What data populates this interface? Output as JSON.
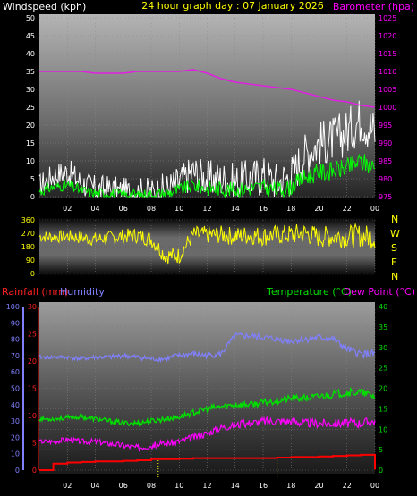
{
  "header": {
    "wind_label": "Windspeed (kph)",
    "title": "24 hour graph day : 07 January 2026",
    "baro_label": "Barometer (hpa)"
  },
  "colors": {
    "wind_gust": "#ffffff",
    "wind_avg": "#00ff00",
    "barometer": "#e020e0",
    "direction": "#ffff00",
    "rain": "#ff0000",
    "humidity": "#8080ff",
    "temperature": "#00e000",
    "dewpoint": "#ff00ff"
  },
  "bottom_labels": {
    "rain": "Rainfall (mm)",
    "humidity": "Humidity",
    "temperature": "Temperature (°C)",
    "dewpoint": "Dew Point (°C)"
  },
  "x_ticks": [
    "02",
    "04",
    "06",
    "08",
    "10",
    "12",
    "14",
    "16",
    "18",
    "20",
    "22",
    "00"
  ],
  "chart_data": [
    {
      "type": "line",
      "title": "24 hour graph day : 07 January 2026",
      "x_hours": [
        0,
        1,
        2,
        3,
        4,
        5,
        6,
        7,
        8,
        9,
        10,
        11,
        12,
        13,
        14,
        15,
        16,
        17,
        18,
        19,
        20,
        21,
        22,
        23,
        24
      ],
      "series": [
        {
          "name": "Windspeed (kph)",
          "axis": "left",
          "ylim": [
            0,
            50
          ],
          "values": [
            3,
            6,
            7,
            4,
            2,
            2,
            1,
            1,
            1,
            2,
            4,
            7,
            5,
            5,
            4,
            5,
            6,
            4,
            6,
            12,
            15,
            16,
            18,
            22,
            18
          ]
        },
        {
          "name": "Barometer (hpa)",
          "axis": "right",
          "ylim": [
            975,
            1025
          ],
          "values": [
            1010,
            1010,
            1010,
            1010,
            1009.5,
            1009.5,
            1009.5,
            1010,
            1010,
            1010,
            1010,
            1010.5,
            1009.5,
            1008,
            1007,
            1006.5,
            1006,
            1005.5,
            1005,
            1004,
            1003,
            1002,
            1001.5,
            1000.5,
            1000
          ]
        }
      ],
      "y_left_ticks": [
        "0",
        "5",
        "10",
        "15",
        "20",
        "25",
        "30",
        "35",
        "40",
        "45",
        "50"
      ],
      "y_right_ticks": [
        "975",
        "980",
        "985",
        "990",
        "995",
        "1000",
        "1005",
        "1010",
        "1015",
        "1020",
        "1025"
      ]
    },
    {
      "type": "line",
      "series": [
        {
          "name": "Wind Direction",
          "ylim": [
            0,
            360
          ],
          "values": [
            250,
            245,
            250,
            240,
            230,
            240,
            250,
            255,
            230,
            120,
            120,
            260,
            260,
            260,
            250,
            260,
            250,
            260,
            260,
            270,
            245,
            250,
            250,
            255,
            240
          ]
        }
      ],
      "y_ticks": [
        "0",
        "90",
        "180",
        "270",
        "360"
      ],
      "compass": [
        "N",
        "W",
        "S",
        "E",
        "N"
      ]
    },
    {
      "type": "line",
      "series": [
        {
          "name": "Rainfall (mm)",
          "axis": "rain",
          "ylim": [
            0,
            30
          ],
          "values": [
            0,
            1.2,
            1.4,
            1.5,
            1.6,
            1.6,
            1.7,
            1.8,
            2.0,
            2.0,
            2.1,
            2.2,
            2.2,
            2.2,
            2.2,
            2.2,
            2.2,
            2.3,
            2.4,
            2.4,
            2.5,
            2.6,
            2.7,
            2.8,
            0.1
          ]
        },
        {
          "name": "Humidity",
          "axis": "humidity",
          "ylim": [
            0,
            100
          ],
          "values": [
            69,
            69,
            69,
            68,
            69,
            69,
            70,
            69,
            68,
            68,
            70,
            71,
            70,
            71,
            82,
            82,
            81,
            80,
            79,
            80,
            81,
            80,
            74,
            71,
            71
          ]
        },
        {
          "name": "Temperature (°C)",
          "axis": "temp",
          "ylim": [
            0,
            40
          ],
          "values": [
            12.5,
            12.5,
            12.8,
            13,
            12.5,
            12,
            11.5,
            11.5,
            12,
            12.5,
            13,
            14,
            15,
            15.5,
            16,
            16,
            16.5,
            17,
            17.5,
            17.5,
            18,
            18.5,
            19,
            19,
            18
          ]
        },
        {
          "name": "Dew Point (°C)",
          "axis": "temp",
          "ylim": [
            0,
            40
          ],
          "values": [
            7,
            7,
            7.5,
            7,
            7,
            6.5,
            6,
            5.5,
            6,
            6.5,
            7,
            8,
            9,
            10.5,
            11,
            11.5,
            12,
            12,
            12,
            11.5,
            11.5,
            11.5,
            11.5,
            11.5,
            12
          ]
        }
      ],
      "rain_ticks": [
        "0",
        "5",
        "10",
        "15",
        "20",
        "25",
        "30"
      ],
      "humidity_ticks": [
        "0",
        "10",
        "20",
        "30",
        "40",
        "50",
        "60",
        "70",
        "80",
        "90",
        "100"
      ],
      "temp_ticks": [
        "0",
        "5",
        "10",
        "15",
        "20",
        "25",
        "30",
        "35",
        "40"
      ]
    }
  ]
}
